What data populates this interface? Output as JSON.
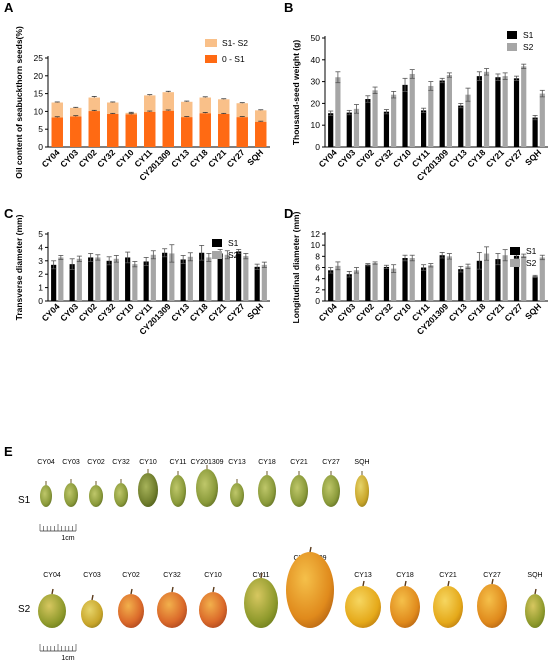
{
  "chart_data": [
    {
      "panel": "A",
      "type": "bar",
      "stacked": true,
      "ylabel": "Oil content of seabuckthorn seeds(%)",
      "ylim": [
        0,
        25
      ],
      "yticks": [
        0,
        5,
        10,
        15,
        20,
        25
      ],
      "categories": [
        "CY04",
        "CY03",
        "CY02",
        "CY32",
        "CY10",
        "CY11",
        "CY201309",
        "CY13",
        "CY18",
        "CY21",
        "CY27",
        "SQH"
      ],
      "series": [
        {
          "name": "0 - S1",
          "color": "#FF6A13",
          "values": [
            8.3,
            8.6,
            10.1,
            9.3,
            9.2,
            9.9,
            10.2,
            8.4,
            9.5,
            9.3,
            8.4,
            7.1
          ],
          "errors": [
            0.2,
            0.2,
            0.2,
            0.15,
            0.15,
            0.2,
            0.2,
            0.15,
            0.2,
            0.15,
            0.15,
            0.15
          ]
        },
        {
          "name": "S1- S2",
          "color": "#F9C089",
          "values": [
            4.2,
            2.4,
            3.8,
            3.2,
            0.4,
            4.6,
            5.2,
            4.3,
            4.4,
            4.1,
            3.9,
            3.2
          ],
          "errors": [
            0.15,
            0.15,
            0.3,
            0.15,
            0.15,
            0.2,
            0.25,
            0.2,
            0.2,
            0.15,
            0.15,
            0.15
          ]
        }
      ],
      "legend": "top-right"
    },
    {
      "panel": "B",
      "type": "bar",
      "ylabel": "Thousand-seed weight (g)",
      "ylim": [
        0,
        50
      ],
      "yticks": [
        0,
        10,
        20,
        30,
        40,
        50
      ],
      "categories": [
        "CY04",
        "CY03",
        "CY02",
        "CY32",
        "CY10",
        "CY11",
        "CY201309",
        "CY13",
        "CY18",
        "CY21",
        "CY27",
        "SQH"
      ],
      "series": [
        {
          "name": "S1",
          "color": "#000000",
          "values": [
            15.5,
            15.8,
            22.0,
            16.2,
            28.5,
            16.8,
            30.5,
            19.0,
            32.5,
            32.0,
            31.5,
            13.5
          ],
          "errors": [
            1.0,
            1.0,
            1.5,
            1.0,
            3.0,
            1.0,
            1.0,
            1.0,
            2.0,
            1.5,
            1.0,
            1.0
          ]
        },
        {
          "name": "S2",
          "color": "#A6A6A6",
          "values": [
            32.0,
            17.5,
            26.0,
            24.0,
            33.5,
            28.0,
            33.0,
            24.0,
            34.5,
            32.5,
            37.0,
            24.5
          ],
          "errors": [
            2.5,
            2.0,
            1.5,
            1.5,
            2.0,
            2.0,
            1.0,
            3.0,
            1.5,
            1.5,
            1.0,
            1.5
          ]
        }
      ],
      "legend": "top-right"
    },
    {
      "panel": "C",
      "type": "bar",
      "ylabel": "Transverse diameter  (mm)",
      "ylim": [
        0,
        5
      ],
      "yticks": [
        0,
        1,
        2,
        3,
        4,
        5
      ],
      "categories": [
        "CY04",
        "CY03",
        "CY02",
        "CY32",
        "CY10",
        "CY11",
        "CY201309",
        "CY13",
        "CY18",
        "CY21",
        "CY27",
        "SQH"
      ],
      "series": [
        {
          "name": "S1",
          "color": "#000000",
          "values": [
            2.7,
            2.75,
            3.25,
            3.0,
            3.25,
            2.95,
            3.6,
            3.1,
            3.6,
            3.55,
            3.7,
            2.55
          ],
          "errors": [
            0.3,
            0.4,
            0.3,
            0.3,
            0.4,
            0.3,
            0.3,
            0.3,
            0.55,
            0.3,
            0.15,
            0.2
          ]
        },
        {
          "name": "S2",
          "color": "#A6A6A6",
          "values": [
            3.25,
            3.15,
            3.25,
            3.15,
            2.75,
            3.45,
            3.55,
            3.3,
            3.25,
            3.45,
            3.35,
            2.7
          ],
          "errors": [
            0.15,
            0.2,
            0.2,
            0.25,
            0.2,
            0.3,
            0.65,
            0.3,
            0.3,
            0.3,
            0.2,
            0.2
          ]
        }
      ],
      "legend": "top-right"
    },
    {
      "panel": "D",
      "type": "bar",
      "ylabel": "Longitudinal diameter (mm)",
      "ylim": [
        0,
        12
      ],
      "yticks": [
        0,
        2,
        4,
        6,
        8,
        10,
        12
      ],
      "categories": [
        "CY04",
        "CY03",
        "CY02",
        "CY32",
        "CY10",
        "CY11",
        "CY201309",
        "CY13",
        "CY18",
        "CY21",
        "CY27",
        "SQH"
      ],
      "series": [
        {
          "name": "S1",
          "color": "#000000",
          "values": [
            5.5,
            4.8,
            6.5,
            6.1,
            7.7,
            6.0,
            8.2,
            5.7,
            7.2,
            7.5,
            8.1,
            4.4
          ],
          "errors": [
            0.5,
            0.5,
            0.2,
            0.3,
            0.5,
            0.5,
            0.5,
            0.5,
            1.5,
            1.0,
            0.5,
            0.2
          ]
        },
        {
          "name": "S2",
          "color": "#A6A6A6",
          "values": [
            6.3,
            5.5,
            6.8,
            5.8,
            7.7,
            6.4,
            8.0,
            6.2,
            8.5,
            8.2,
            8.1,
            7.8
          ],
          "errors": [
            0.7,
            0.5,
            0.2,
            0.7,
            0.5,
            0.3,
            0.5,
            0.4,
            1.2,
            1.0,
            0.3,
            0.4
          ]
        }
      ],
      "legend": "top-right"
    }
  ],
  "panel_e": {
    "letter": "E",
    "row_s1": "S1",
    "row_s2": "S2",
    "scale_label": "1cm",
    "labels": [
      "CY04",
      "CY03",
      "CY02",
      "CY32",
      "CY10",
      "CY11",
      "CY201309",
      "CY13",
      "CY18",
      "CY21",
      "CY27",
      "SQH"
    ]
  },
  "panel_letters": [
    "A",
    "B",
    "C",
    "D"
  ]
}
